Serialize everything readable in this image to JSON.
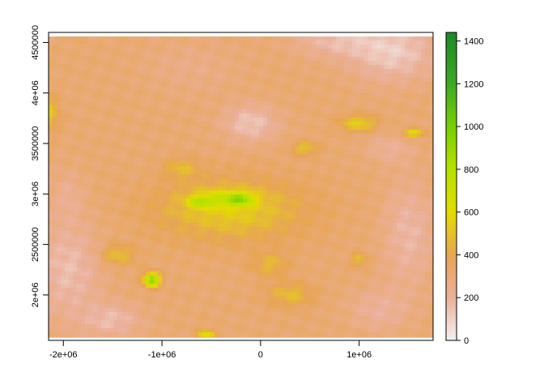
{
  "chart_data": {
    "type": "heatmap",
    "title": "",
    "xlabel": "",
    "ylabel": "",
    "xlim": [
      -2150000,
      1750000
    ],
    "ylim": [
      1550000,
      4600000
    ],
    "extent": {
      "xmin": -2150000,
      "xmax": 1750000,
      "ymin": 1580000,
      "ymax": 4560000
    },
    "x_ticks": [
      {
        "value": -2000000,
        "label": "-2e+06"
      },
      {
        "value": -1000000,
        "label": "-1e+06"
      },
      {
        "value": 0,
        "label": "0"
      },
      {
        "value": 1000000,
        "label": "1e+06"
      }
    ],
    "y_ticks": [
      {
        "value": 2000000,
        "label": "2e+06"
      },
      {
        "value": 2500000,
        "label": "2500000"
      },
      {
        "value": 3000000,
        "label": "3e+06"
      },
      {
        "value": 3500000,
        "label": "3500000"
      },
      {
        "value": 4000000,
        "label": "4e+06"
      },
      {
        "value": 4500000,
        "label": "4500000"
      }
    ],
    "legend": {
      "placement": "right",
      "range": [
        0,
        1440
      ],
      "ticks": [
        {
          "value": 0,
          "label": "0"
        },
        {
          "value": 200,
          "label": "200"
        },
        {
          "value": 400,
          "label": "400"
        },
        {
          "value": 600,
          "label": "600"
        },
        {
          "value": 800,
          "label": "800"
        },
        {
          "value": 1000,
          "label": "1000"
        },
        {
          "value": 1200,
          "label": "1200"
        },
        {
          "value": 1400,
          "label": "1400"
        }
      ],
      "colormap": [
        {
          "value": 0,
          "color": "#f2f2f2"
        },
        {
          "value": 200,
          "color": "#ebb19c"
        },
        {
          "value": 400,
          "color": "#e8a555"
        },
        {
          "value": 600,
          "color": "#e3dc00"
        },
        {
          "value": 800,
          "color": "#b6e200"
        },
        {
          "value": 1000,
          "color": "#78d000"
        },
        {
          "value": 1200,
          "color": "#3caa24"
        },
        {
          "value": 1440,
          "color": "#1e8a26"
        }
      ]
    },
    "background_value": 320,
    "features": [
      {
        "x": -1200000,
        "y": 4480000,
        "rx": 950000,
        "ry": 380000,
        "value": 0
      },
      {
        "x": -700000,
        "y": 4250000,
        "rx": 700000,
        "ry": 380000,
        "value": -60
      },
      {
        "x": 1350000,
        "y": 4400000,
        "rx": 650000,
        "ry": 420000,
        "value": -200
      },
      {
        "x": 750000,
        "y": 4520000,
        "rx": 650000,
        "ry": 250000,
        "value": -140
      },
      {
        "x": -100000,
        "y": 3700000,
        "rx": 420000,
        "ry": 280000,
        "value": -180
      },
      {
        "x": -1950000,
        "y": 2250000,
        "rx": 480000,
        "ry": 750000,
        "value": -160
      },
      {
        "x": -1950000,
        "y": 3000000,
        "rx": 250000,
        "ry": 350000,
        "value": -80
      },
      {
        "x": 1500000,
        "y": 2600000,
        "rx": 380000,
        "ry": 800000,
        "value": -140
      },
      {
        "x": 1200000,
        "y": 1850000,
        "rx": 450000,
        "ry": 320000,
        "value": -110
      },
      {
        "x": -1500000,
        "y": 1750000,
        "rx": 450000,
        "ry": 250000,
        "value": -150
      },
      {
        "x": 1300000,
        "y": 3450000,
        "rx": 350000,
        "ry": 220000,
        "value": -100
      },
      {
        "x": -300000,
        "y": 2850000,
        "rx": 1100000,
        "ry": 450000,
        "value": 220
      },
      {
        "x": -400000,
        "y": 2950000,
        "rx": 380000,
        "ry": 120000,
        "value": 200
      },
      {
        "x": -620000,
        "y": 2920000,
        "rx": 170000,
        "ry": 80000,
        "value": 260
      },
      {
        "x": -200000,
        "y": 2950000,
        "rx": 200000,
        "ry": 90000,
        "value": 320
      },
      {
        "x": -1100000,
        "y": 2150000,
        "rx": 120000,
        "ry": 100000,
        "value": 620
      },
      {
        "x": -1450000,
        "y": 2400000,
        "rx": 250000,
        "ry": 150000,
        "value": 180
      },
      {
        "x": 1000000,
        "y": 3700000,
        "rx": 280000,
        "ry": 120000,
        "value": 230
      },
      {
        "x": 1550000,
        "y": 3600000,
        "rx": 160000,
        "ry": 60000,
        "value": 320
      },
      {
        "x": 450000,
        "y": 3450000,
        "rx": 200000,
        "ry": 100000,
        "value": 180
      },
      {
        "x": -2150000,
        "y": 3800000,
        "rx": 150000,
        "ry": 250000,
        "value": 200
      },
      {
        "x": -550000,
        "y": 1600000,
        "rx": 130000,
        "ry": 80000,
        "value": 330
      },
      {
        "x": 300000,
        "y": 2000000,
        "rx": 350000,
        "ry": 180000,
        "value": 160
      },
      {
        "x": 100000,
        "y": 2300000,
        "rx": 280000,
        "ry": 180000,
        "value": 140
      },
      {
        "x": 1000000,
        "y": 2350000,
        "rx": 120000,
        "ry": 100000,
        "value": 180
      },
      {
        "x": -800000,
        "y": 3250000,
        "rx": 260000,
        "ry": 140000,
        "value": 140
      }
    ]
  }
}
